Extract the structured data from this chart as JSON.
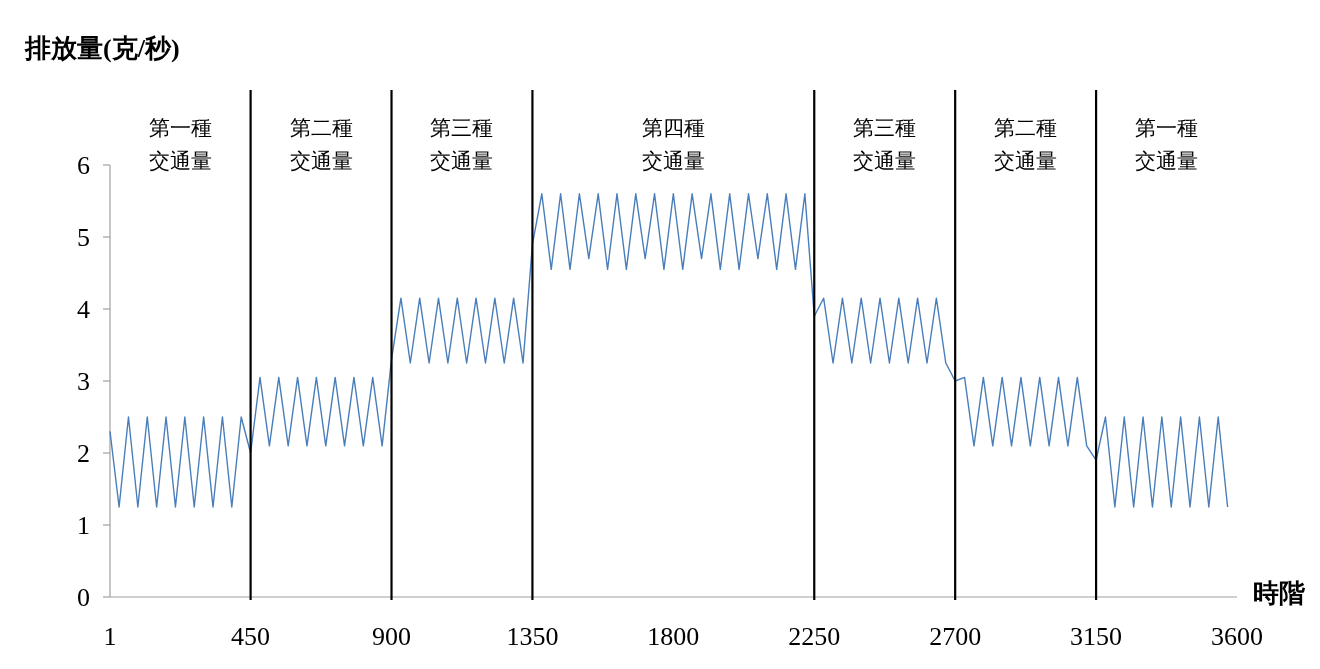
{
  "chart_data": {
    "type": "line",
    "ylabel": "排放量(克/秒)",
    "xlabel": "時階",
    "xlim": [
      1,
      3600
    ],
    "xticks": [
      1,
      450,
      900,
      1350,
      1800,
      2250,
      2700,
      3150,
      3600
    ],
    "ylim": [
      0,
      6
    ],
    "yticks": [
      0,
      1,
      2,
      3,
      4,
      5,
      6
    ],
    "grid": false,
    "ref_lines": [
      {
        "axis": "x",
        "value": 450,
        "color": "#000000"
      },
      {
        "axis": "x",
        "value": 900,
        "color": "#000000"
      },
      {
        "axis": "x",
        "value": 1350,
        "color": "#000000"
      },
      {
        "axis": "x",
        "value": 2250,
        "color": "#000000"
      },
      {
        "axis": "x",
        "value": 2700,
        "color": "#000000"
      },
      {
        "axis": "x",
        "value": 3150,
        "color": "#000000"
      }
    ],
    "annotations": [
      "第一種交通量",
      "第二種交通量",
      "第三種交通量",
      "第四種交通量",
      "第三種交通量",
      "第二種交通量",
      "第一種交通量"
    ],
    "x": [
      1,
      30,
      60,
      90,
      120,
      150,
      180,
      210,
      240,
      270,
      300,
      330,
      360,
      390,
      420,
      450,
      480,
      510,
      540,
      570,
      600,
      630,
      660,
      690,
      720,
      750,
      780,
      810,
      840,
      870,
      900,
      930,
      960,
      990,
      1020,
      1050,
      1080,
      1110,
      1140,
      1170,
      1200,
      1230,
      1260,
      1290,
      1320,
      1350,
      1380,
      1410,
      1440,
      1470,
      1500,
      1530,
      1560,
      1590,
      1620,
      1650,
      1680,
      1710,
      1740,
      1770,
      1800,
      1830,
      1860,
      1890,
      1920,
      1950,
      1980,
      2010,
      2040,
      2070,
      2100,
      2130,
      2160,
      2190,
      2220,
      2250,
      2280,
      2310,
      2340,
      2370,
      2400,
      2430,
      2460,
      2490,
      2520,
      2550,
      2580,
      2610,
      2640,
      2670,
      2700,
      2730,
      2760,
      2790,
      2820,
      2850,
      2880,
      2910,
      2940,
      2970,
      3000,
      3030,
      3060,
      3090,
      3120,
      3150,
      3180,
      3210,
      3240,
      3270,
      3300,
      3330,
      3360,
      3390,
      3420,
      3450,
      3480,
      3510,
      3540,
      3570
    ],
    "series": [
      {
        "color": "#4a7ebb",
        "values": [
          2.3,
          1.25,
          2.5,
          1.25,
          2.5,
          1.25,
          2.5,
          1.25,
          2.5,
          1.25,
          2.5,
          1.25,
          2.5,
          1.25,
          2.5,
          2.0,
          3.05,
          2.1,
          3.05,
          2.1,
          3.05,
          2.1,
          3.05,
          2.1,
          3.05,
          2.1,
          3.05,
          2.1,
          3.05,
          2.1,
          3.3,
          4.15,
          3.25,
          4.15,
          3.25,
          4.15,
          3.25,
          4.15,
          3.25,
          4.15,
          3.25,
          4.15,
          3.25,
          4.15,
          3.25,
          4.9,
          5.6,
          4.55,
          5.6,
          4.55,
          5.6,
          4.7,
          5.6,
          4.55,
          5.6,
          4.55,
          5.6,
          4.7,
          5.6,
          4.55,
          5.6,
          4.55,
          5.6,
          4.7,
          5.6,
          4.55,
          5.6,
          4.55,
          5.6,
          4.7,
          5.6,
          4.55,
          5.6,
          4.55,
          5.6,
          3.9,
          4.15,
          3.25,
          4.15,
          3.25,
          4.15,
          3.25,
          4.15,
          3.25,
          4.15,
          3.25,
          4.15,
          3.25,
          4.15,
          3.25,
          3.0,
          3.05,
          2.1,
          3.05,
          2.1,
          3.05,
          2.1,
          3.05,
          2.1,
          3.05,
          2.1,
          3.05,
          2.1,
          3.05,
          2.1,
          1.9,
          2.5,
          1.25,
          2.5,
          1.25,
          2.5,
          1.25,
          2.5,
          1.25,
          2.5,
          1.25,
          2.5,
          1.25,
          2.5,
          1.25
        ]
      }
    ]
  }
}
